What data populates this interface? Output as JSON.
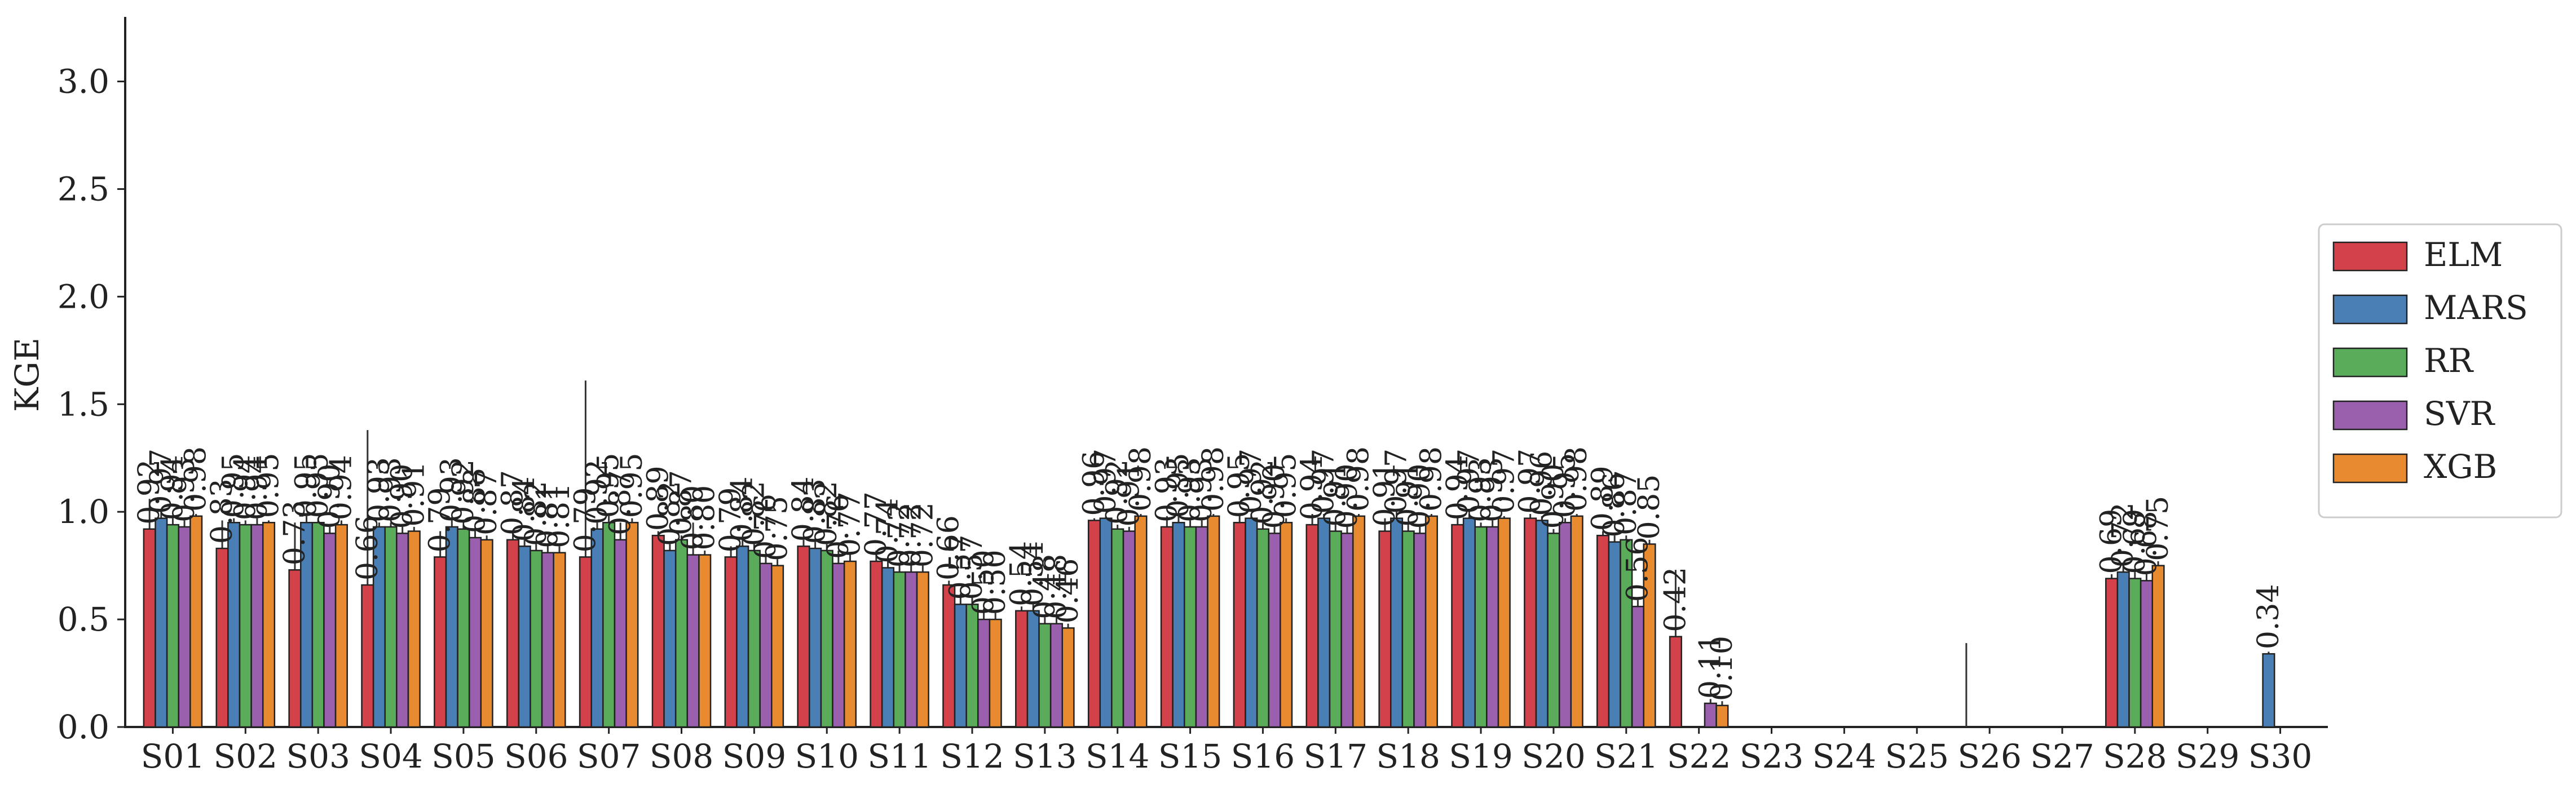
{
  "chart_data": {
    "type": "bar",
    "title": "",
    "xlabel": "",
    "ylabel": "KGE",
    "ylim": [
      0,
      3.3
    ],
    "yticks": [
      0.0,
      0.5,
      1.0,
      1.5,
      2.0,
      2.5,
      3.0
    ],
    "ytick_labels": [
      "0.0",
      "0.5",
      "1.0",
      "1.5",
      "2.0",
      "2.5",
      "3.0"
    ],
    "grid": false,
    "legend_position": "right",
    "categories": [
      "S01",
      "S02",
      "S03",
      "S04",
      "S05",
      "S06",
      "S07",
      "S08",
      "S09",
      "S10",
      "S11",
      "S12",
      "S13",
      "S14",
      "S15",
      "S16",
      "S17",
      "S18",
      "S19",
      "S20",
      "S21",
      "S22",
      "S23",
      "S24",
      "S25",
      "S26",
      "S27",
      "S28",
      "S29",
      "S30"
    ],
    "series": [
      {
        "name": "ELM",
        "color": "#d3424a",
        "values": [
          0.92,
          0.83,
          0.73,
          0.66,
          0.79,
          0.87,
          0.79,
          0.89,
          0.79,
          0.84,
          0.77,
          0.66,
          0.54,
          0.96,
          0.93,
          0.95,
          0.94,
          0.91,
          0.94,
          0.97,
          0.89,
          0.42,
          null,
          null,
          null,
          null,
          null,
          0.69,
          null,
          null
        ],
        "labels": [
          "0.92",
          "0.83",
          "0.73",
          "0.66",
          "0.79",
          "0.87",
          "0.79",
          "0.89",
          "0.79",
          "0.84",
          "0.77",
          "0.66",
          "0.54",
          "0.96",
          "0.93",
          "0.95",
          "0.94",
          "0.91",
          "0.94",
          "0.97",
          "0.89",
          "0.42",
          "",
          "",
          "",
          "",
          "",
          "0.69",
          "",
          ""
        ],
        "err": [
          0.14,
          0.13,
          0.22,
          0.72,
          0.12,
          0.04,
          0.82,
          0.02,
          0.05,
          0.03,
          0.05,
          0.02,
          0.02,
          0.01,
          0.05,
          0.04,
          0.05,
          0.06,
          0.04,
          0.02,
          0.02,
          0.31,
          0,
          0,
          0,
          0.39,
          0,
          0.02,
          0,
          0
        ]
      },
      {
        "name": "MARS",
        "color": "#4a7fb5",
        "values": [
          0.97,
          0.95,
          0.95,
          0.93,
          0.93,
          0.84,
          0.92,
          0.82,
          0.84,
          0.83,
          0.74,
          0.57,
          0.54,
          0.97,
          0.95,
          0.97,
          0.97,
          0.97,
          0.97,
          0.96,
          0.86,
          null,
          null,
          null,
          null,
          null,
          null,
          0.72,
          null,
          0.34
        ],
        "labels": [
          "0.97",
          "0.95",
          "0.95",
          "0.93",
          "0.93",
          "0.84",
          "0.92",
          "0.82",
          "0.84",
          "0.83",
          "0.74",
          "0.57",
          "0.54",
          "0.97",
          "0.95",
          "0.97",
          "0.97",
          "0.97",
          "0.97",
          "0.96",
          "0.86",
          "",
          "",
          "",
          "",
          "",
          "",
          "0.72",
          "",
          "0.34"
        ],
        "err": [
          0.03,
          0.02,
          0.03,
          0.02,
          0.03,
          0.03,
          0.03,
          0.03,
          0.04,
          0.03,
          0.05,
          0.05,
          0.03,
          0.01,
          0.03,
          0.02,
          0.02,
          0.03,
          0.02,
          0.02,
          0.03,
          0,
          0,
          0,
          0,
          0,
          0,
          0.03,
          0,
          0.01
        ]
      },
      {
        "name": "RR",
        "color": "#5aab5a",
        "values": [
          0.94,
          0.94,
          0.95,
          0.93,
          0.92,
          0.82,
          0.95,
          0.87,
          0.82,
          0.82,
          0.72,
          0.57,
          0.48,
          0.92,
          0.93,
          0.92,
          0.91,
          0.91,
          0.93,
          0.9,
          0.87,
          null,
          null,
          null,
          null,
          null,
          null,
          0.69,
          null,
          null
        ],
        "labels": [
          "0.94",
          "0.94",
          "0.95",
          "0.93",
          "0.92",
          "0.82",
          "0.95",
          "0.87",
          "0.82",
          "0.82",
          "0.72",
          "0.57",
          "0.48",
          "0.92",
          "0.93",
          "0.92",
          "0.91",
          "0.91",
          "0.93",
          "0.90",
          "0.87",
          "",
          "",
          "",
          "",
          "",
          "",
          "0.69",
          "",
          ""
        ],
        "err": [
          0.03,
          0.02,
          0.02,
          0.02,
          0.02,
          0.03,
          0.03,
          0.02,
          0.03,
          0.03,
          0.04,
          0.04,
          0.03,
          0.02,
          0.03,
          0.03,
          0.03,
          0.03,
          0.02,
          0.02,
          0.02,
          0,
          0,
          0,
          0,
          0,
          0,
          0.03,
          0,
          0
        ]
      },
      {
        "name": "SVR",
        "color": "#9a60ad",
        "values": [
          0.93,
          0.94,
          0.9,
          0.9,
          0.88,
          0.81,
          0.87,
          0.8,
          0.76,
          0.76,
          0.72,
          0.5,
          0.48,
          0.91,
          0.93,
          0.9,
          0.9,
          0.9,
          0.93,
          0.95,
          0.56,
          0.11,
          null,
          null,
          null,
          null,
          null,
          0.68,
          null,
          null
        ],
        "labels": [
          "0.93",
          "0.94",
          "0.90",
          "0.90",
          "0.88",
          "0.81",
          "0.87",
          "0.80",
          "0.76",
          "0.76",
          "0.72",
          "0.50",
          "0.48",
          "0.91",
          "0.93",
          "0.90",
          "0.90",
          "0.90",
          "0.93",
          "0.95",
          "0.56",
          "0.11",
          "",
          "",
          "",
          "",
          "",
          "0.68",
          "",
          ""
        ],
        "err": [
          0.03,
          0.03,
          0.03,
          0.03,
          0.03,
          0.04,
          0.08,
          0.15,
          0.04,
          0.06,
          0.05,
          0.05,
          0.03,
          0.02,
          0.03,
          0.03,
          0.03,
          0.03,
          0.03,
          0.02,
          0.03,
          0.02,
          0,
          0,
          0,
          0,
          0,
          0.03,
          0,
          0
        ]
      },
      {
        "name": "XGB",
        "color": "#e88a30",
        "values": [
          0.98,
          0.95,
          0.94,
          0.91,
          0.87,
          0.81,
          0.95,
          0.8,
          0.75,
          0.77,
          0.72,
          0.5,
          0.46,
          0.98,
          0.98,
          0.95,
          0.98,
          0.98,
          0.97,
          0.98,
          0.85,
          0.1,
          null,
          null,
          null,
          null,
          null,
          0.75,
          null,
          null
        ],
        "labels": [
          "0.98",
          "0.95",
          "0.94",
          "0.91",
          "0.87",
          "0.81",
          "0.95",
          "0.80",
          "0.75",
          "0.77",
          "0.72",
          "0.50",
          "0.46",
          "0.98",
          "0.98",
          "0.95",
          "0.98",
          "0.98",
          "0.97",
          "0.98",
          "0.85",
          "0.10",
          "",
          "",
          "",
          "",
          "",
          "0.75",
          "",
          ""
        ],
        "err": [
          0.01,
          0.01,
          0.02,
          0.02,
          0.02,
          0.03,
          0.02,
          0.02,
          0.03,
          0.03,
          0.03,
          0.03,
          0.02,
          0.01,
          0.01,
          0.02,
          0.01,
          0.01,
          0.01,
          0.01,
          0.02,
          0.02,
          0,
          0,
          0,
          0,
          0,
          0.02,
          0,
          0
        ]
      }
    ]
  }
}
